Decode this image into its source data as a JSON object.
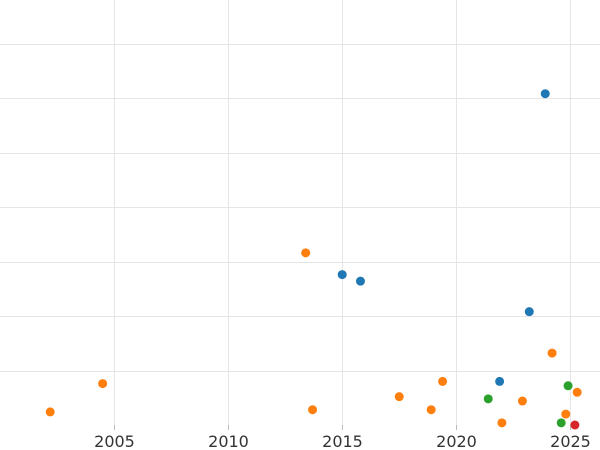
{
  "chart_data": {
    "type": "scatter",
    "title": "",
    "xlabel": "",
    "ylabel": "",
    "xlim": [
      2000.0,
      2026.3
    ],
    "ylim": [
      0,
      19.5
    ],
    "x_ticks": [
      2005,
      2010,
      2015,
      2020,
      2025
    ],
    "x_tick_labels": [
      "2005",
      "2010",
      "2015",
      "2020",
      "2025"
    ],
    "y_gridlines": [
      2.5,
      5.0,
      7.5,
      10.0,
      12.5,
      15.0,
      17.5
    ],
    "grid": true,
    "legend": "none",
    "series": [
      {
        "color": "#1f77b4",
        "points": [
          {
            "x": 2023.9,
            "y": 15.2
          },
          {
            "x": 2015.0,
            "y": 6.9
          },
          {
            "x": 2015.8,
            "y": 6.6
          },
          {
            "x": 2023.2,
            "y": 5.2
          },
          {
            "x": 2021.9,
            "y": 2.0
          }
        ]
      },
      {
        "color": "#ff7f0e",
        "points": [
          {
            "x": 2002.2,
            "y": 0.6
          },
          {
            "x": 2004.5,
            "y": 1.9
          },
          {
            "x": 2013.4,
            "y": 7.9
          },
          {
            "x": 2013.7,
            "y": 0.7
          },
          {
            "x": 2017.5,
            "y": 1.3
          },
          {
            "x": 2018.9,
            "y": 0.7
          },
          {
            "x": 2019.4,
            "y": 2.0
          },
          {
            "x": 2022.0,
            "y": 0.1
          },
          {
            "x": 2022.9,
            "y": 1.1
          },
          {
            "x": 2024.2,
            "y": 3.3
          },
          {
            "x": 2024.8,
            "y": 0.5
          },
          {
            "x": 2025.3,
            "y": 1.5
          }
        ]
      },
      {
        "color": "#2ca02c",
        "points": [
          {
            "x": 2021.4,
            "y": 1.2
          },
          {
            "x": 2024.9,
            "y": 1.8
          },
          {
            "x": 2024.6,
            "y": 0.1
          }
        ]
      },
      {
        "color": "#d62728",
        "points": [
          {
            "x": 2025.2,
            "y": 0.0
          }
        ]
      }
    ]
  }
}
